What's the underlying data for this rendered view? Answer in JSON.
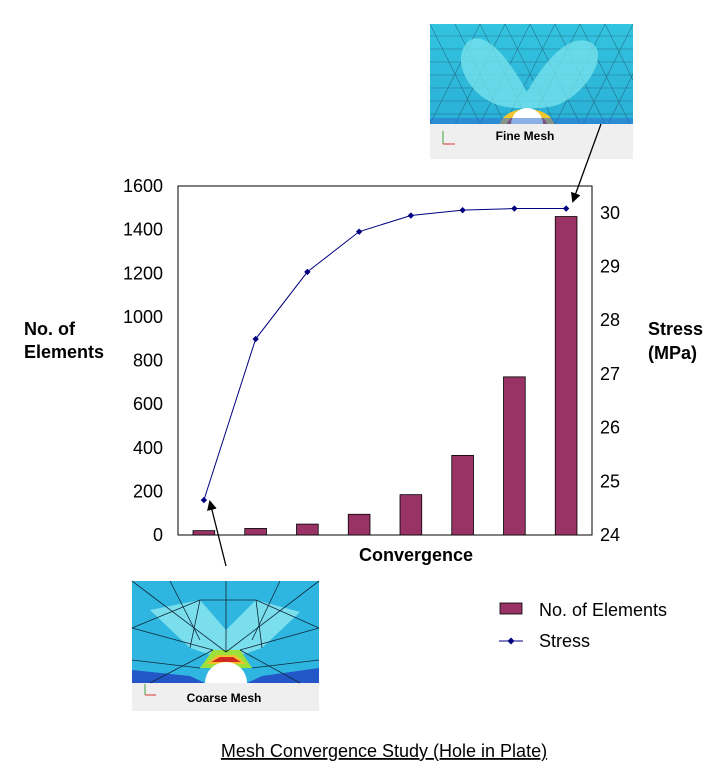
{
  "chart_data": {
    "type": "bar+line",
    "title": "",
    "x_axis_title": "Convergence",
    "y_left_title_line1": "No. of",
    "y_left_title_line2": "Elements",
    "y_right_title_line1": "Stress",
    "y_right_title_line2": "(MPa)",
    "y_left_ticks": [
      "0",
      "200",
      "400",
      "600",
      "800",
      "1000",
      "1200",
      "1400",
      "1600"
    ],
    "y_right_ticks": [
      "24",
      "25",
      "26",
      "27",
      "28",
      "29",
      "30"
    ],
    "ylim_left": [
      0,
      1600
    ],
    "ylim_right": [
      24,
      30.5
    ],
    "num_categories": 8,
    "series": [
      {
        "name": "No. of Elements",
        "type": "bar",
        "axis": "left",
        "color": "#993366",
        "values": [
          20,
          30,
          50,
          95,
          185,
          365,
          725,
          1460
        ]
      },
      {
        "name": "Stress",
        "type": "line",
        "axis": "right",
        "color": "#000080",
        "values": [
          24.65,
          27.65,
          28.9,
          29.65,
          29.95,
          30.05,
          30.08,
          30.08
        ]
      }
    ],
    "legend_position": "bottom-right"
  },
  "insets": {
    "fine_label": "Fine Mesh",
    "coarse_label": "Coarse Mesh"
  },
  "caption": "Mesh Convergence Study (Hole in Plate)"
}
